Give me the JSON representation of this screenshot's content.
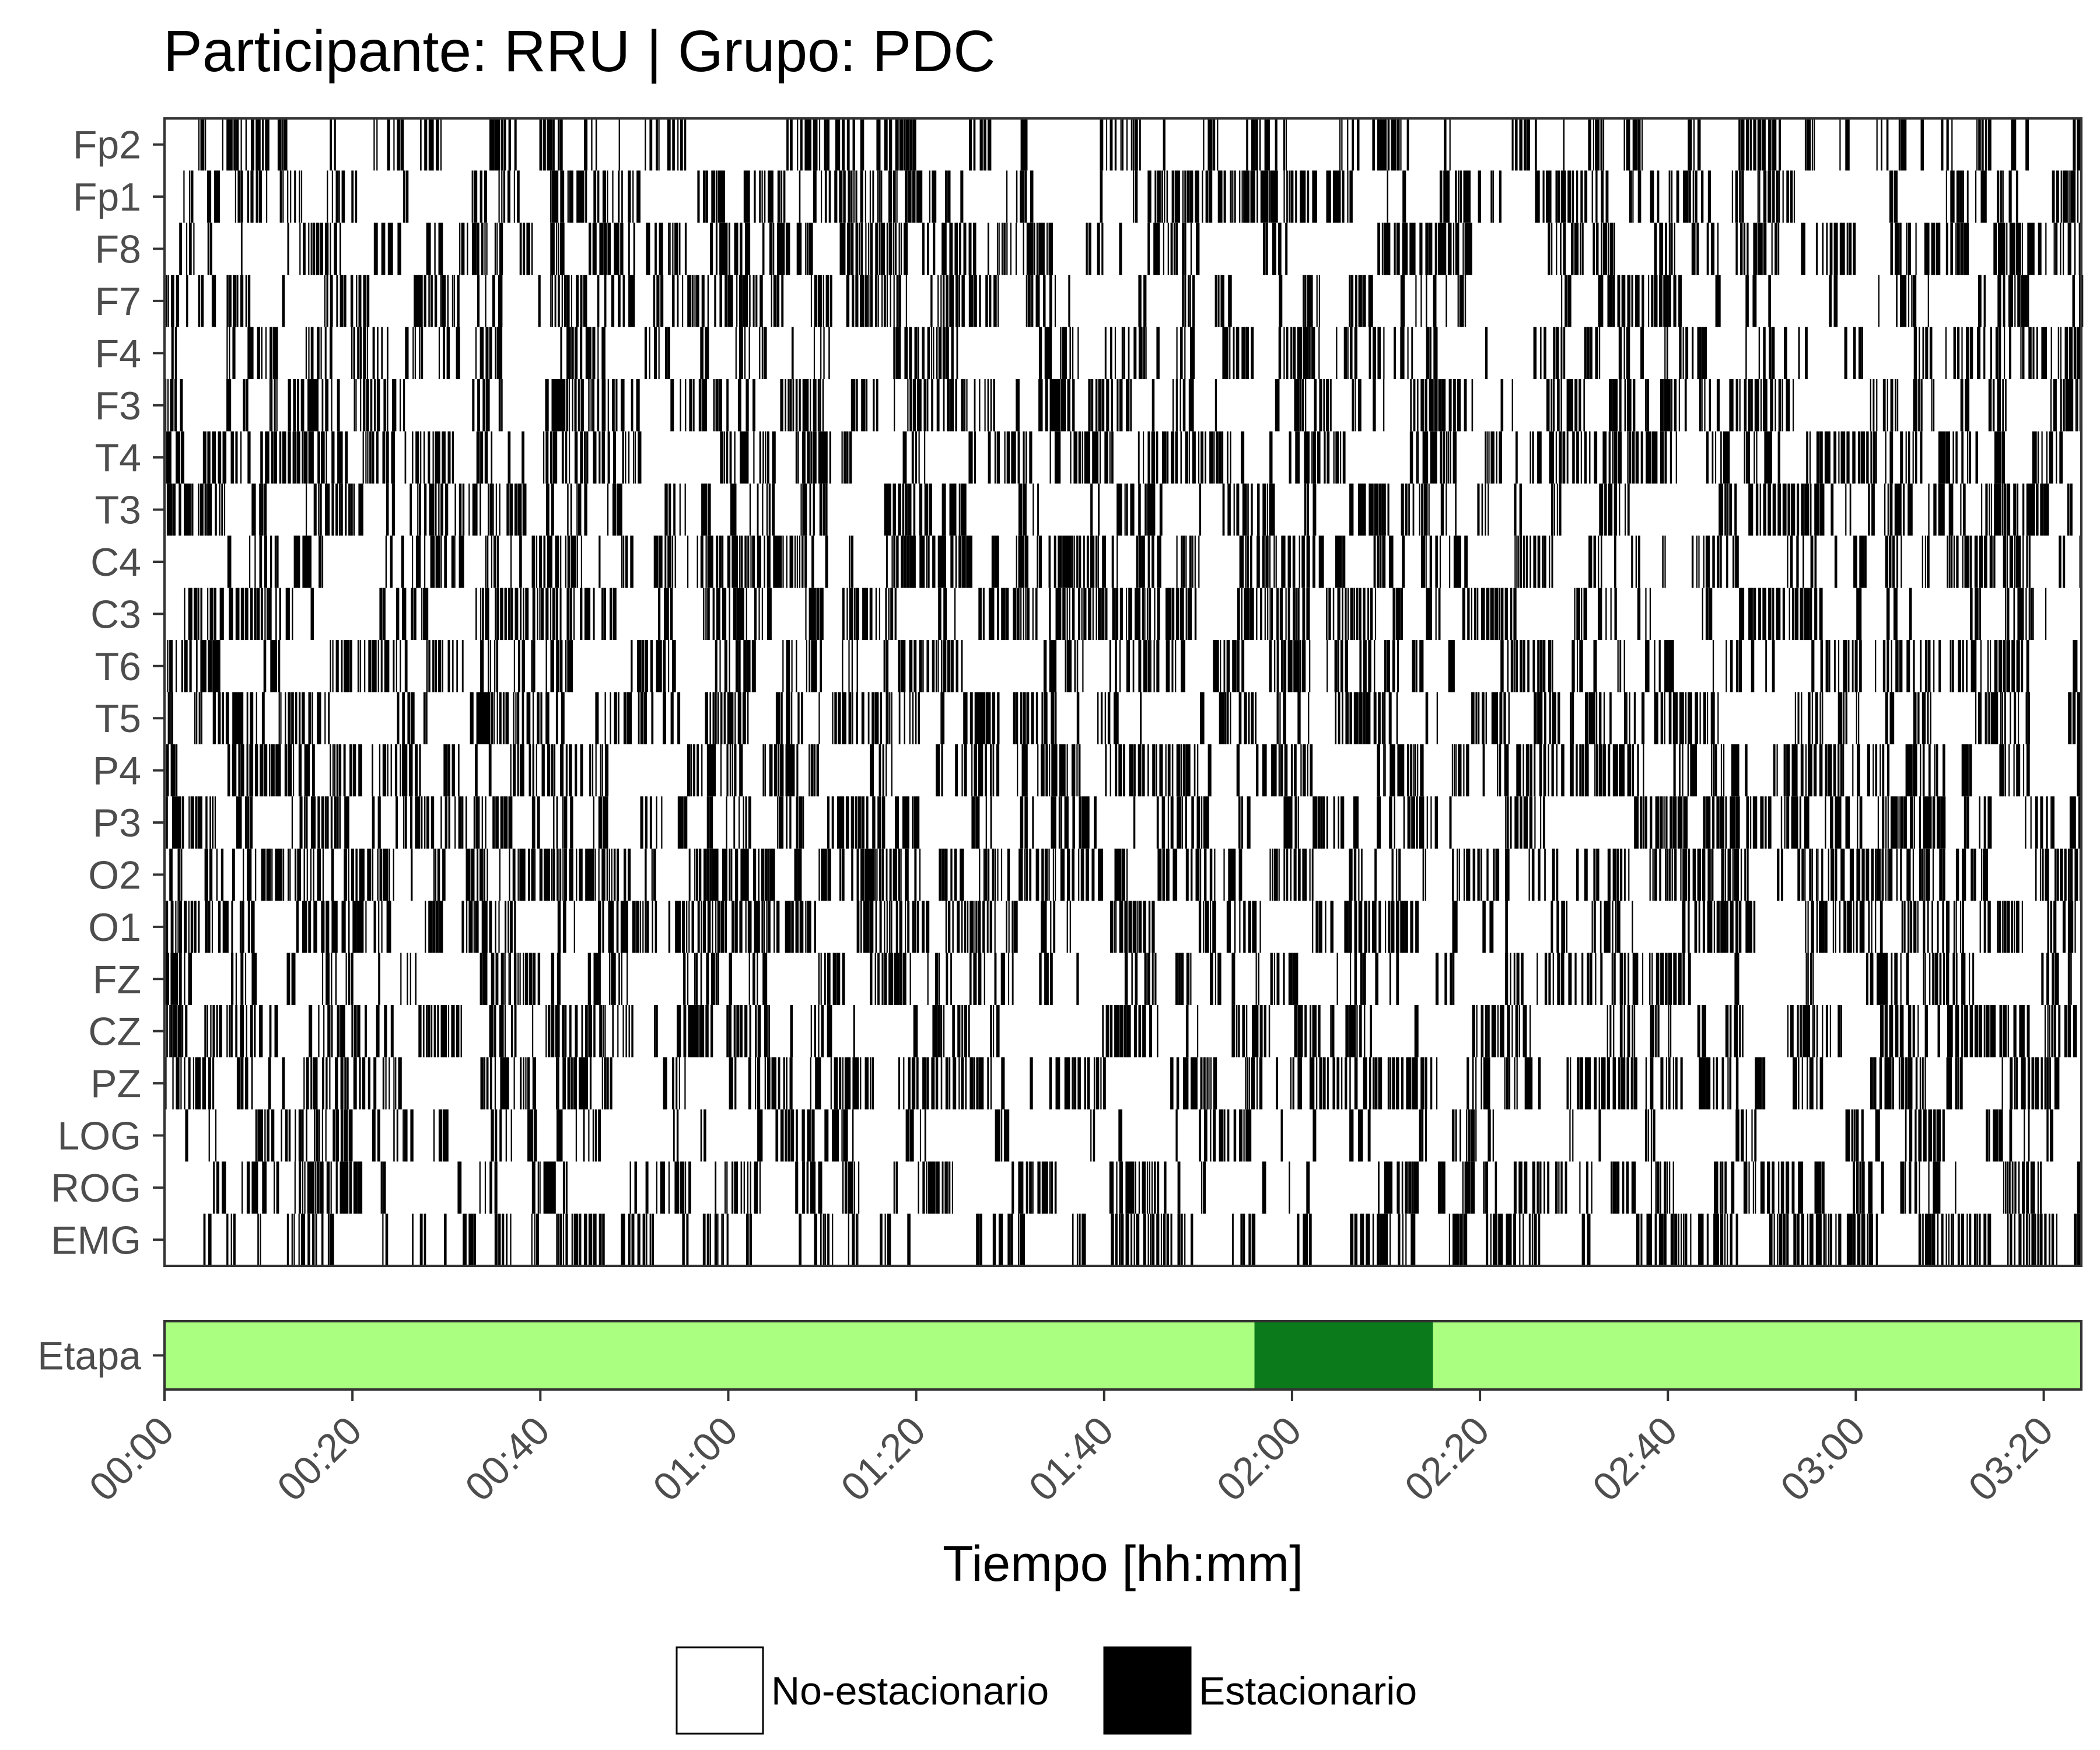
{
  "chart_data": {
    "type": "heatmap",
    "title": "Participante: RRU | Grupo: PDC",
    "xlabel": "Tiempo [hh:mm]",
    "ylabel": "",
    "channels": [
      "Fp2",
      "Fp1",
      "F8",
      "F7",
      "F4",
      "F3",
      "T4",
      "T3",
      "C4",
      "C3",
      "T6",
      "T5",
      "P4",
      "P3",
      "O2",
      "O1",
      "FZ",
      "CZ",
      "PZ",
      "LOG",
      "ROG",
      "EMG"
    ],
    "x_range_minutes": [
      0,
      204
    ],
    "x_ticks": [
      "00:00",
      "00:20",
      "00:40",
      "01:00",
      "01:20",
      "01:40",
      "02:00",
      "02:20",
      "02:40",
      "03:00",
      "03:20"
    ],
    "x_tick_minutes": [
      0,
      20,
      40,
      60,
      80,
      100,
      120,
      140,
      160,
      180,
      200
    ],
    "epoch_seconds": 30,
    "n_epochs": 408,
    "values_note_encoding": "0 = No-estacionario, 1 = Estacionario",
    "stationary_fraction_by_channel": [
      0.45,
      0.55,
      0.55,
      0.5,
      0.55,
      0.55,
      0.6,
      0.55,
      0.55,
      0.6,
      0.6,
      0.55,
      0.6,
      0.6,
      0.65,
      0.65,
      0.5,
      0.5,
      0.6,
      0.4,
      0.45,
      0.5
    ],
    "stage_track": {
      "label": "Etapa",
      "segments": [
        {
          "start_min": 0,
          "end_min": 116,
          "stage_color": "#aaff80"
        },
        {
          "start_min": 116,
          "end_min": 135,
          "stage_color": "#0a7a1a"
        },
        {
          "start_min": 135,
          "end_min": 204,
          "stage_color": "#aaff80"
        }
      ]
    },
    "legend": {
      "position": "bottom",
      "items": [
        {
          "label": "No-estacionario",
          "color": "#ffffff"
        },
        {
          "label": "Estacionario",
          "color": "#000000"
        }
      ]
    },
    "grid": false
  }
}
